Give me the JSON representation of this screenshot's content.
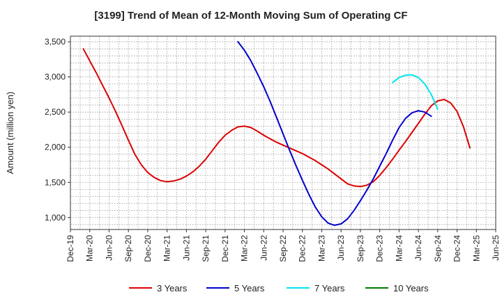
{
  "chart_data": {
    "type": "line",
    "title": "[3199]  Trend of Mean of 12-Month Moving Sum of Operating CF",
    "xlabel": "",
    "ylabel": "Amount (million yen)",
    "ylim": [
      830,
      3580
    ],
    "yticks": [
      1000,
      1500,
      2000,
      2500,
      3000,
      3500
    ],
    "ytick_labels": [
      "1,000",
      "1,500",
      "2,000",
      "2,500",
      "3,000",
      "3,500"
    ],
    "x_range_months": [
      0,
      66
    ],
    "xticks": [
      {
        "label": "Dec-19",
        "month": 0
      },
      {
        "label": "Mar-20",
        "month": 3
      },
      {
        "label": "Jun-20",
        "month": 6
      },
      {
        "label": "Sep-20",
        "month": 9
      },
      {
        "label": "Dec-20",
        "month": 12
      },
      {
        "label": "Mar-21",
        "month": 15
      },
      {
        "label": "Jun-21",
        "month": 18
      },
      {
        "label": "Sep-21",
        "month": 21
      },
      {
        "label": "Dec-21",
        "month": 24
      },
      {
        "label": "Mar-22",
        "month": 27
      },
      {
        "label": "Jun-22",
        "month": 30
      },
      {
        "label": "Sep-22",
        "month": 33
      },
      {
        "label": "Dec-22",
        "month": 36
      },
      {
        "label": "Mar-23",
        "month": 39
      },
      {
        "label": "Jun-23",
        "month": 42
      },
      {
        "label": "Sep-23",
        "month": 45
      },
      {
        "label": "Dec-23",
        "month": 48
      },
      {
        "label": "Mar-24",
        "month": 51
      },
      {
        "label": "Jun-24",
        "month": 54
      },
      {
        "label": "Sep-24",
        "month": 57
      },
      {
        "label": "Dec-24",
        "month": 60
      },
      {
        "label": "Mar-25",
        "month": 63
      },
      {
        "label": "Jun-25",
        "month": 66
      }
    ],
    "grid": true,
    "legend_position": "bottom",
    "series": [
      {
        "name": "3 Years",
        "color": "#dd0000",
        "start_month": 2,
        "values": [
          3400,
          3230,
          3060,
          2880,
          2700,
          2510,
          2310,
          2100,
          1900,
          1750,
          1640,
          1570,
          1525,
          1510,
          1520,
          1545,
          1590,
          1650,
          1730,
          1830,
          1950,
          2070,
          2170,
          2240,
          2290,
          2300,
          2280,
          2230,
          2170,
          2120,
          2070,
          2030,
          1990,
          1950,
          1910,
          1860,
          1810,
          1750,
          1690,
          1620,
          1550,
          1480,
          1450,
          1440,
          1460,
          1510,
          1600,
          1710,
          1830,
          1960,
          2080,
          2210,
          2340,
          2470,
          2590,
          2660,
          2680,
          2630,
          2510,
          2290,
          1990
        ]
      },
      {
        "name": "5 Years",
        "color": "#0000cc",
        "start_month": 26,
        "values": [
          3500,
          3380,
          3230,
          3050,
          2860,
          2650,
          2420,
          2190,
          1960,
          1740,
          1530,
          1330,
          1150,
          1010,
          920,
          890,
          910,
          980,
          1100,
          1240,
          1390,
          1550,
          1730,
          1910,
          2100,
          2280,
          2410,
          2490,
          2520,
          2500,
          2440
        ]
      },
      {
        "name": "7 Years",
        "color": "#00e5ee",
        "start_month": 50,
        "values": [
          2920,
          2990,
          3025,
          3030,
          2990,
          2900,
          2750,
          2540
        ]
      },
      {
        "name": "10 Years",
        "color": "#007700",
        "start_month": 0,
        "values": []
      }
    ]
  }
}
